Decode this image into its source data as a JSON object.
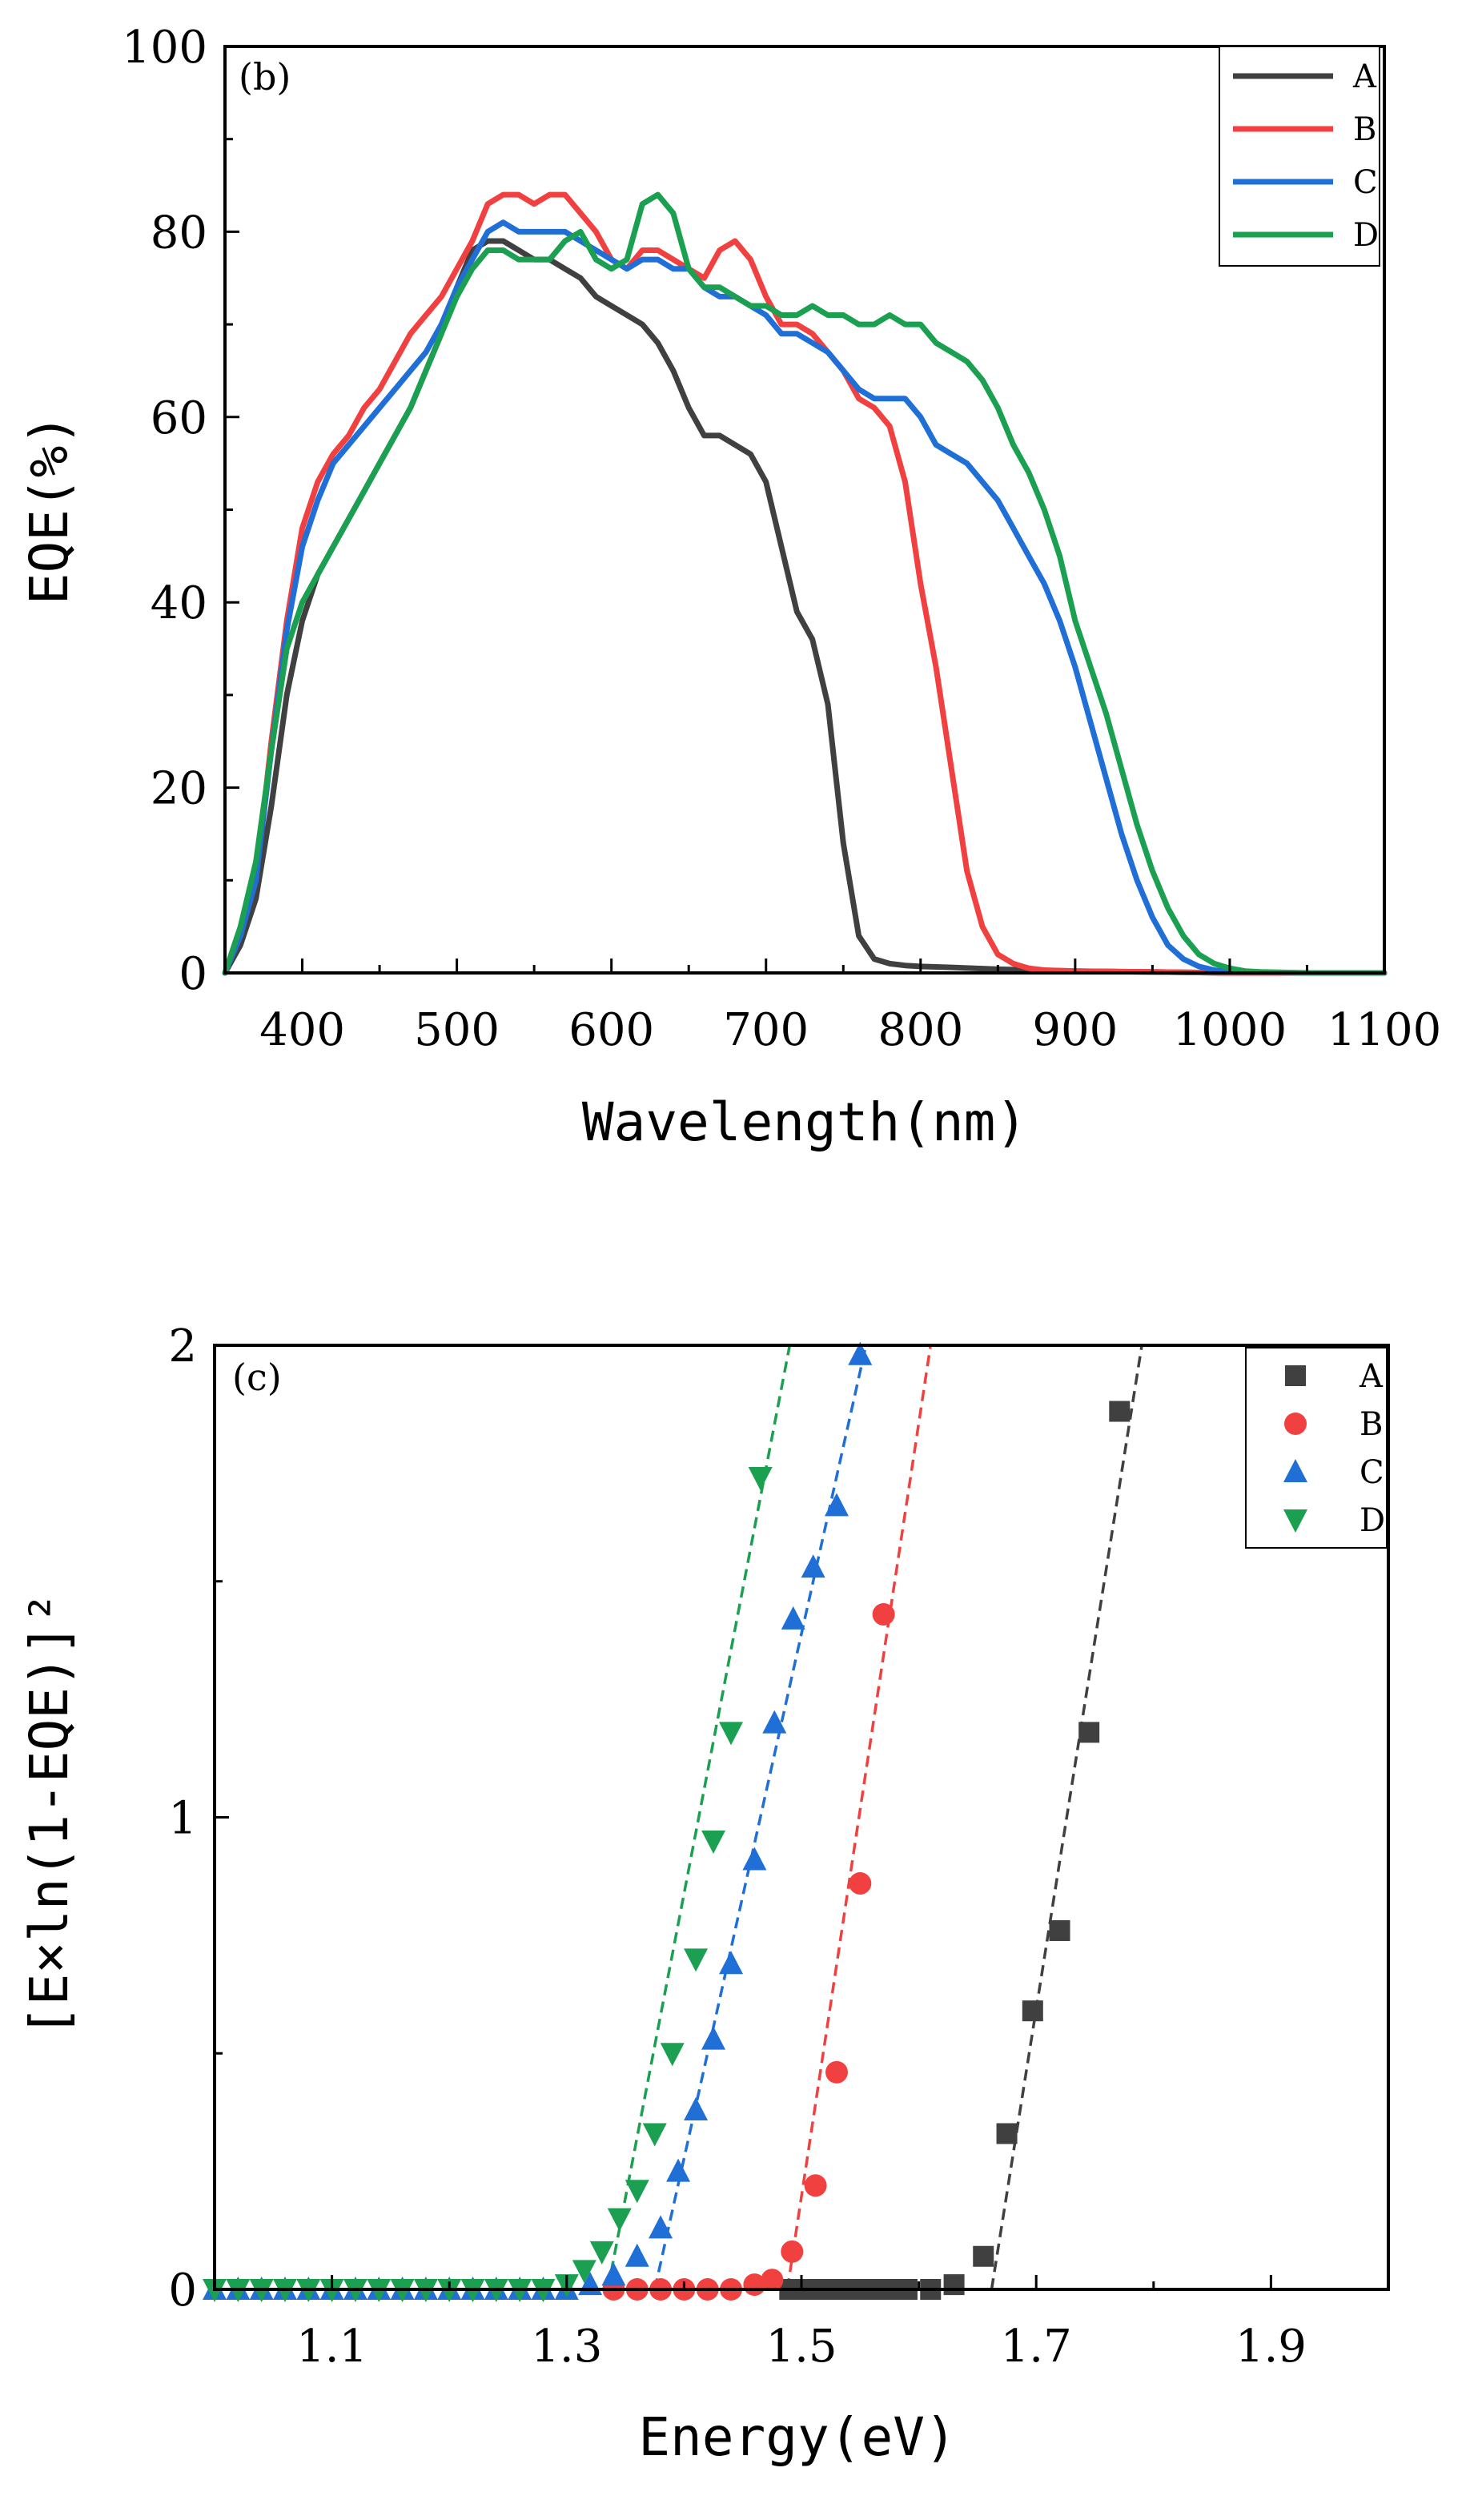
{
  "chart_data": [
    {
      "type": "line",
      "panel_label": "(b)",
      "title": "",
      "xlabel": "Wavelength(nm)",
      "ylabel": "EQE(%)",
      "xlim": [
        350,
        1100
      ],
      "ylim": [
        0,
        100
      ],
      "xticks": [
        400,
        500,
        600,
        700,
        800,
        900,
        1000,
        1100
      ],
      "xtick_labels": [
        "400",
        "500",
        "600",
        "700",
        "800",
        "900",
        "1000",
        "1100"
      ],
      "yticks": [
        0,
        20,
        40,
        60,
        80,
        100
      ],
      "ytick_labels": [
        "0",
        "20",
        "40",
        "60",
        "80",
        "100"
      ],
      "legend_position": "top-right",
      "series": [
        {
          "name": "A",
          "color": "#404040",
          "x": [
            350,
            360,
            370,
            380,
            390,
            400,
            410,
            420,
            430,
            440,
            450,
            460,
            470,
            480,
            490,
            500,
            510,
            520,
            530,
            540,
            550,
            560,
            570,
            580,
            590,
            600,
            610,
            620,
            630,
            640,
            650,
            660,
            670,
            680,
            690,
            700,
            710,
            720,
            730,
            740,
            750,
            760,
            770,
            780,
            790,
            800,
            820,
            850,
            900,
            950,
            1000,
            1050,
            1100
          ],
          "y": [
            0,
            3,
            8,
            18,
            30,
            38,
            43,
            46,
            49,
            52,
            55,
            58,
            61,
            65,
            69,
            74,
            78,
            79,
            79,
            78,
            77,
            77,
            76,
            75,
            73,
            72,
            71,
            70,
            68,
            65,
            61,
            58,
            58,
            57,
            56,
            53,
            46,
            39,
            36,
            29,
            14,
            4,
            1.5,
            1.0,
            0.8,
            0.7,
            0.6,
            0.4,
            0.2,
            0.1,
            0,
            0,
            0
          ]
        },
        {
          "name": "B",
          "color": "#f04040",
          "x": [
            350,
            360,
            370,
            380,
            390,
            400,
            410,
            420,
            430,
            440,
            450,
            460,
            470,
            480,
            490,
            500,
            510,
            520,
            530,
            540,
            550,
            560,
            570,
            580,
            590,
            600,
            610,
            620,
            630,
            640,
            650,
            660,
            670,
            680,
            690,
            700,
            710,
            720,
            730,
            740,
            750,
            760,
            770,
            780,
            790,
            800,
            810,
            820,
            830,
            840,
            850,
            860,
            870,
            880,
            900,
            950,
            1000,
            1050,
            1100
          ],
          "y": [
            0,
            4,
            10,
            25,
            38,
            48,
            53,
            56,
            58,
            61,
            63,
            66,
            69,
            71,
            73,
            76,
            79,
            83,
            84,
            84,
            83,
            84,
            84,
            82,
            80,
            77,
            76,
            78,
            78,
            77,
            76,
            75,
            78,
            79,
            77,
            73,
            70,
            70,
            69,
            67,
            65,
            62,
            61,
            59,
            53,
            42,
            33,
            22,
            11,
            5,
            2,
            1,
            0.5,
            0.3,
            0.2,
            0.1,
            0,
            0,
            0
          ]
        },
        {
          "name": "C",
          "color": "#1f6fd6",
          "x": [
            350,
            360,
            370,
            380,
            390,
            400,
            410,
            420,
            430,
            440,
            450,
            460,
            470,
            480,
            490,
            500,
            510,
            520,
            530,
            540,
            550,
            560,
            570,
            580,
            590,
            600,
            610,
            620,
            630,
            640,
            650,
            660,
            670,
            680,
            690,
            700,
            710,
            720,
            730,
            740,
            750,
            760,
            770,
            780,
            790,
            800,
            810,
            820,
            830,
            840,
            850,
            860,
            870,
            880,
            890,
            900,
            910,
            920,
            930,
            940,
            950,
            960,
            970,
            980,
            990,
            1000,
            1050,
            1100
          ],
          "y": [
            0,
            4,
            10,
            24,
            37,
            46,
            51,
            55,
            57,
            59,
            61,
            63,
            65,
            67,
            70,
            74,
            77,
            80,
            81,
            80,
            80,
            80,
            80,
            79,
            78,
            77,
            76,
            77,
            77,
            76,
            76,
            74,
            73,
            73,
            72,
            71,
            69,
            69,
            68,
            67,
            65,
            63,
            62,
            62,
            62,
            60,
            57,
            56,
            55,
            53,
            51,
            48,
            45,
            42,
            38,
            33,
            27,
            21,
            15,
            10,
            6,
            3,
            1.5,
            0.7,
            0.3,
            0.1,
            0,
            0
          ]
        },
        {
          "name": "D",
          "color": "#1aa050",
          "x": [
            350,
            360,
            370,
            380,
            390,
            400,
            410,
            420,
            430,
            440,
            450,
            460,
            470,
            480,
            490,
            500,
            510,
            520,
            530,
            540,
            550,
            560,
            570,
            580,
            590,
            600,
            610,
            620,
            630,
            640,
            650,
            660,
            670,
            680,
            690,
            700,
            710,
            720,
            730,
            740,
            750,
            760,
            770,
            780,
            790,
            800,
            810,
            820,
            830,
            840,
            850,
            860,
            870,
            880,
            890,
            900,
            910,
            920,
            930,
            940,
            950,
            960,
            970,
            980,
            990,
            1000,
            1010,
            1020,
            1050,
            1100
          ],
          "y": [
            0,
            5,
            12,
            24,
            35,
            40,
            43,
            46,
            49,
            52,
            55,
            58,
            61,
            65,
            69,
            73,
            76,
            78,
            78,
            77,
            77,
            77,
            79,
            80,
            77,
            76,
            77,
            83,
            84,
            82,
            76,
            74,
            74,
            73,
            72,
            72,
            71,
            71,
            72,
            71,
            71,
            70,
            70,
            71,
            70,
            70,
            68,
            67,
            66,
            64,
            61,
            57,
            54,
            50,
            45,
            38,
            33,
            28,
            22,
            16,
            11,
            7,
            4,
            2,
            1,
            0.5,
            0.2,
            0.1,
            0,
            0
          ]
        }
      ]
    },
    {
      "type": "scatter",
      "panel_label": "(c)",
      "title": "",
      "xlabel": "Energy(eV)",
      "ylabel": "[E×ln(1-EQE)]²",
      "xlim": [
        1.0,
        2.0
      ],
      "ylim": [
        0,
        2
      ],
      "xticks": [
        1.1,
        1.3,
        1.5,
        1.7,
        1.9
      ],
      "xtick_labels": [
        "1.1",
        "1.3",
        "1.5",
        "1.7",
        "1.9"
      ],
      "yticks": [
        0,
        1,
        2
      ],
      "ytick_labels": [
        "0",
        "1",
        "2"
      ],
      "legend_position": "top-right",
      "series": [
        {
          "name": "A",
          "color": "#404040",
          "marker": "square",
          "x": [
            1.49,
            1.5,
            1.51,
            1.52,
            1.53,
            1.54,
            1.55,
            1.56,
            1.57,
            1.58,
            1.59,
            1.61,
            1.63,
            1.655,
            1.675,
            1.697,
            1.72,
            1.745,
            1.771
          ],
          "y": [
            0,
            0,
            0,
            0,
            0,
            0,
            0,
            0,
            0,
            0,
            0,
            0,
            0.01,
            0.07,
            0.33,
            0.59,
            0.76,
            1.18,
            1.86
          ],
          "fit": {
            "x": [
              1.662,
              1.79
            ],
            "y": [
              0,
              2
            ]
          }
        },
        {
          "name": "B",
          "color": "#f04040",
          "marker": "circle",
          "x": [
            1.34,
            1.36,
            1.38,
            1.4,
            1.42,
            1.44,
            1.46,
            1.475,
            1.492,
            1.512,
            1.53,
            1.55,
            1.57
          ],
          "y": [
            0,
            0,
            0,
            0,
            0,
            0,
            0.01,
            0.02,
            0.08,
            0.22,
            0.46,
            0.86,
            1.43
          ],
          "fit": {
            "x": [
              1.488,
              1.61
            ],
            "y": [
              0,
              2
            ]
          }
        },
        {
          "name": "C",
          "color": "#1f6fd6",
          "marker": "triangle-up",
          "x": [
            1.0,
            1.02,
            1.04,
            1.06,
            1.08,
            1.1,
            1.12,
            1.14,
            1.16,
            1.18,
            1.2,
            1.22,
            1.24,
            1.26,
            1.28,
            1.3,
            1.32,
            1.34,
            1.36,
            1.38,
            1.395,
            1.41,
            1.425,
            1.44,
            1.46,
            1.477,
            1.493,
            1.51,
            1.53,
            1.55
          ],
          "y": [
            0,
            0,
            0,
            0,
            0,
            0,
            0,
            0,
            0,
            0,
            0,
            0,
            0,
            0,
            0,
            0,
            0.01,
            0.03,
            0.07,
            0.13,
            0.25,
            0.38,
            0.53,
            0.69,
            0.91,
            1.2,
            1.42,
            1.53,
            1.66,
            1.98
          ],
          "fit": {
            "x": [
              1.375,
              1.555
            ],
            "y": [
              0,
              2
            ]
          }
        },
        {
          "name": "D",
          "color": "#1aa050",
          "marker": "triangle-down",
          "x": [
            1.0,
            1.02,
            1.04,
            1.06,
            1.08,
            1.1,
            1.12,
            1.14,
            1.16,
            1.18,
            1.2,
            1.22,
            1.24,
            1.26,
            1.28,
            1.3,
            1.315,
            1.33,
            1.345,
            1.36,
            1.375,
            1.39,
            1.41,
            1.425,
            1.44,
            1.465
          ],
          "y": [
            0,
            0,
            0,
            0,
            0,
            0,
            0,
            0,
            0,
            0,
            0,
            0,
            0,
            0,
            0,
            0.01,
            0.04,
            0.08,
            0.15,
            0.21,
            0.33,
            0.5,
            0.7,
            0.95,
            1.18,
            1.72
          ],
          "fit": {
            "x": [
              1.335,
              1.49
            ],
            "y": [
              0,
              2
            ]
          }
        }
      ]
    }
  ]
}
